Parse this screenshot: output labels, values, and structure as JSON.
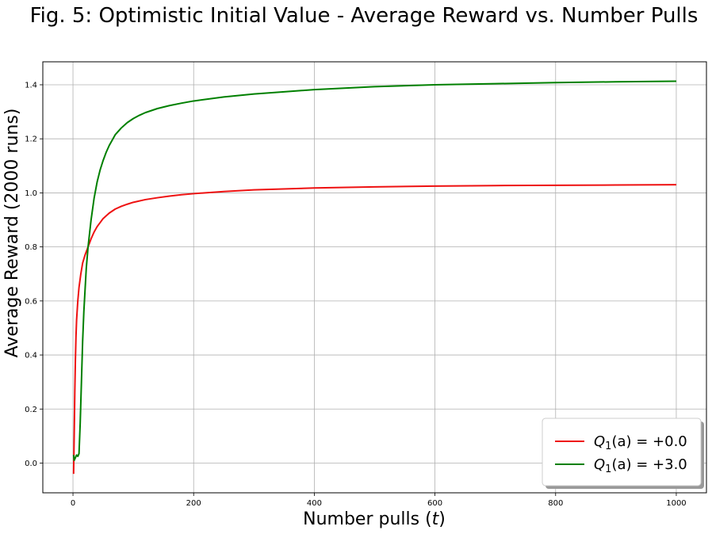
{
  "chart_data": {
    "type": "line",
    "title": "Fig. 5: Optimistic Initial Value - Average Reward vs. Number Pulls",
    "xlabel": "Number pulls (t)",
    "ylabel": "Average Reward (2000 runs)",
    "xlim": [
      -50,
      1050
    ],
    "ylim": [
      -0.11,
      1.485
    ],
    "xticks": [
      0,
      200,
      400,
      600,
      800,
      1000
    ],
    "yticks": [
      0.0,
      0.2,
      0.4,
      0.6,
      0.8,
      1.0,
      1.2,
      1.4
    ],
    "xtick_labels": [
      "0",
      "200",
      "400",
      "600",
      "800",
      "1000"
    ],
    "ytick_labels": [
      "0.0",
      "0.2",
      "0.4",
      "0.6",
      "0.8",
      "1.0",
      "1.2",
      "1.4"
    ],
    "grid": true,
    "legend_position": "bottom-right",
    "series": [
      {
        "name": "Q1(a) = +0.0",
        "legend": {
          "sym": "Q",
          "sub": "1",
          "arg": "(a) = +0.0"
        },
        "color": "#ee1111",
        "x": [
          1,
          2,
          3,
          4,
          5,
          6,
          8,
          10,
          13,
          16,
          20,
          25,
          30,
          35,
          40,
          50,
          60,
          70,
          80,
          90,
          100,
          120,
          140,
          160,
          180,
          200,
          250,
          300,
          400,
          500,
          600,
          700,
          800,
          900,
          1000
        ],
        "y": [
          -0.04,
          0.1,
          0.26,
          0.38,
          0.47,
          0.53,
          0.6,
          0.65,
          0.7,
          0.74,
          0.77,
          0.8,
          0.83,
          0.855,
          0.875,
          0.905,
          0.925,
          0.94,
          0.95,
          0.958,
          0.965,
          0.975,
          0.982,
          0.988,
          0.993,
          0.997,
          1.005,
          1.011,
          1.018,
          1.022,
          1.025,
          1.027,
          1.028,
          1.029,
          1.03
        ]
      },
      {
        "name": "Q1(a) = +3.0",
        "legend": {
          "sym": "Q",
          "sub": "1",
          "arg": "(a) = +3.0"
        },
        "color": "#008000",
        "x": [
          1,
          2,
          4,
          6,
          8,
          10,
          12,
          14,
          16,
          18,
          20,
          22,
          25,
          28,
          30,
          35,
          40,
          45,
          50,
          55,
          60,
          70,
          80,
          90,
          100,
          110,
          120,
          140,
          160,
          180,
          200,
          250,
          300,
          350,
          400,
          500,
          600,
          700,
          800,
          900,
          1000
        ],
        "y": [
          0.03,
          0.01,
          0.02,
          0.03,
          0.025,
          0.035,
          0.15,
          0.3,
          0.45,
          0.56,
          0.64,
          0.72,
          0.8,
          0.86,
          0.9,
          0.98,
          1.04,
          1.085,
          1.12,
          1.15,
          1.175,
          1.215,
          1.24,
          1.26,
          1.275,
          1.287,
          1.297,
          1.312,
          1.323,
          1.332,
          1.34,
          1.355,
          1.366,
          1.374,
          1.382,
          1.393,
          1.4,
          1.404,
          1.408,
          1.411,
          1.413
        ]
      }
    ]
  }
}
